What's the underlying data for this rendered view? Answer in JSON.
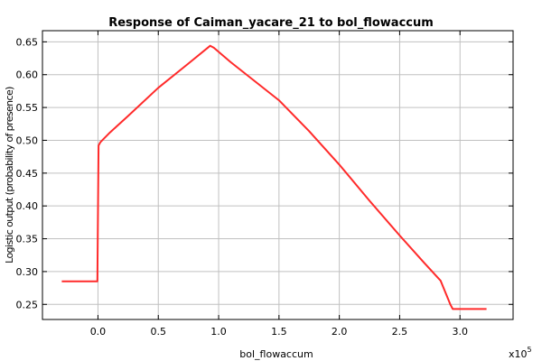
{
  "chart_data": {
    "type": "line",
    "title": "Response of Caiman_yacare_21 to bol_flowaccum",
    "xlabel": "bol_flowaccum",
    "ylabel": "Logistic output (probability of presence)",
    "x_multiplier": "x10",
    "x_multiplier_exp": "5",
    "xlim": [
      -0.46,
      3.44
    ],
    "ylim": [
      0.227,
      0.667
    ],
    "grid": true,
    "x_ticks": [
      0.0,
      0.5,
      1.0,
      1.5,
      2.0,
      2.5,
      3.0
    ],
    "x_tick_labels": [
      "0.0",
      "0.5",
      "1.0",
      "1.5",
      "2.0",
      "2.5",
      "3.0"
    ],
    "y_ticks": [
      0.25,
      0.3,
      0.35,
      0.4,
      0.45,
      0.5,
      0.55,
      0.6,
      0.65
    ],
    "y_tick_labels": [
      "0.25",
      "0.30",
      "0.35",
      "0.40",
      "0.45",
      "0.50",
      "0.55",
      "0.60",
      "0.65"
    ],
    "series": [
      {
        "color": "#ff2a2a",
        "x": [
          -0.3,
          -0.01,
          -0.005,
          0.005,
          0.02,
          0.1,
          0.25,
          0.5,
          0.75,
          0.93,
          0.96,
          1.1,
          1.3,
          1.5,
          1.75,
          2.0,
          2.25,
          2.5,
          2.7,
          2.84,
          2.92,
          2.94,
          3.0,
          3.22
        ],
        "values": [
          0.285,
          0.285,
          0.285,
          0.492,
          0.497,
          0.512,
          0.537,
          0.58,
          0.617,
          0.644,
          0.641,
          0.619,
          0.59,
          0.561,
          0.514,
          0.463,
          0.408,
          0.355,
          0.314,
          0.286,
          0.25,
          0.243,
          0.243,
          0.243
        ]
      }
    ]
  }
}
